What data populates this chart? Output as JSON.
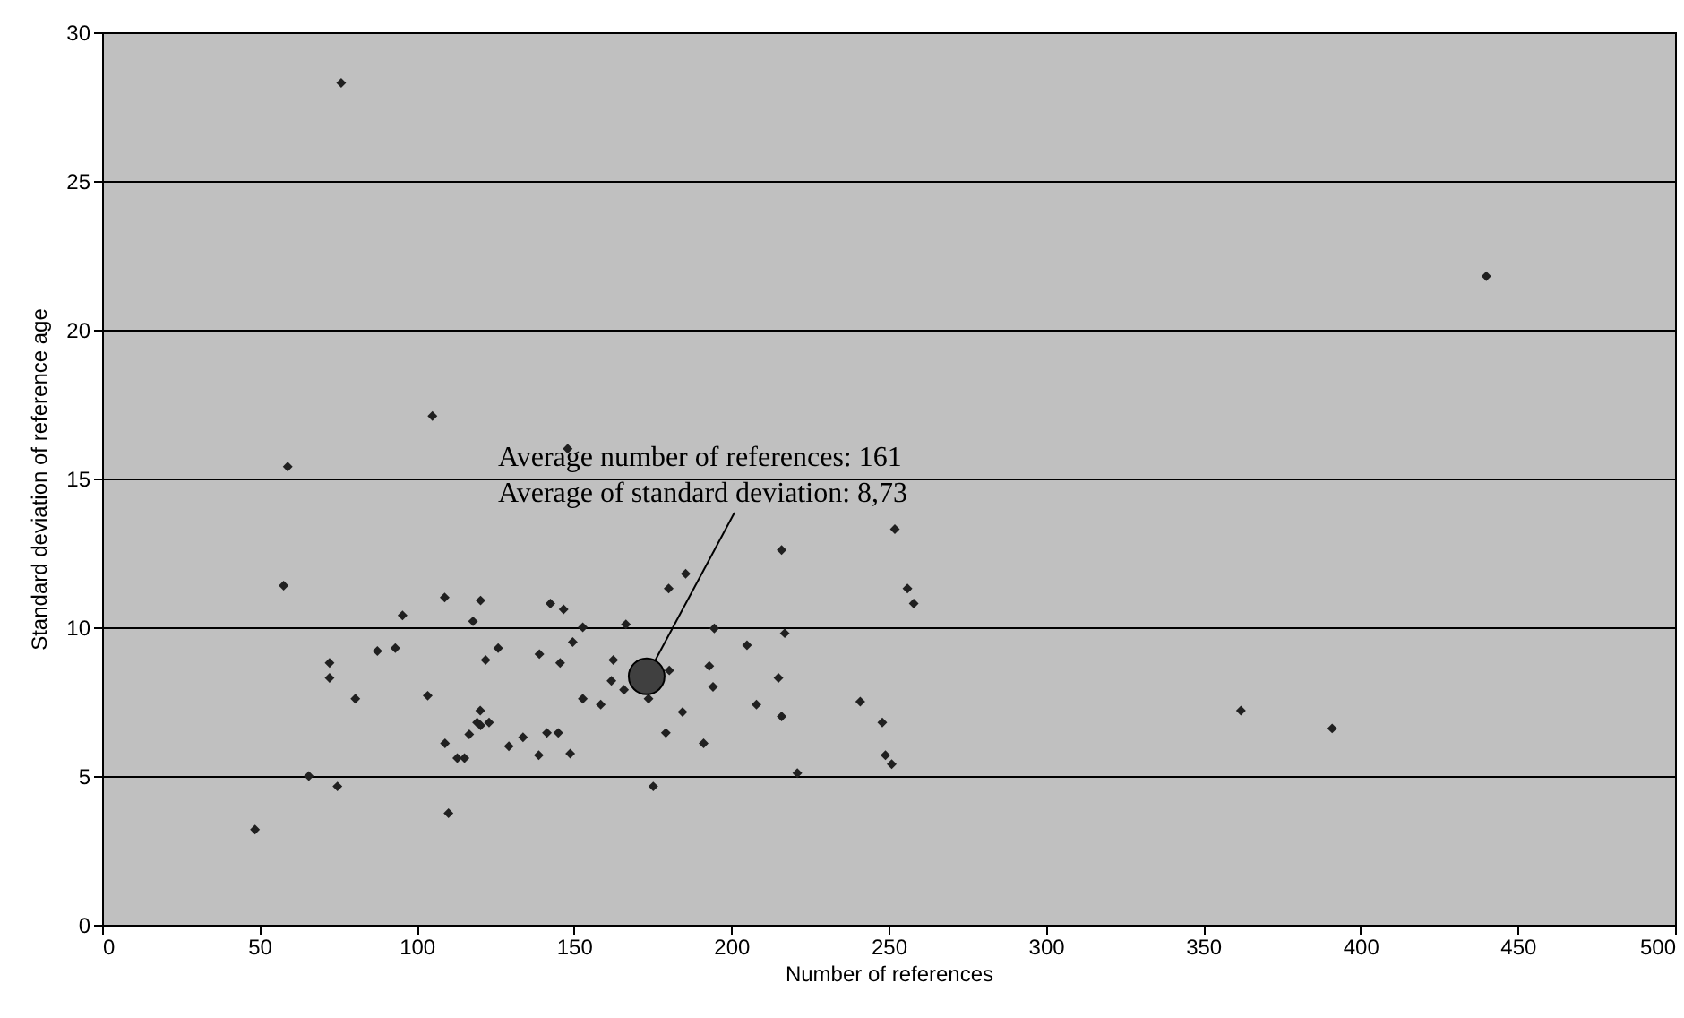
{
  "chart_data": {
    "type": "scatter",
    "xlabel": "Number of references",
    "ylabel": "Standard deviation of reference age",
    "xlim": [
      0,
      500
    ],
    "xticks": [
      0,
      50,
      100,
      150,
      200,
      250,
      300,
      350,
      400,
      450,
      500
    ],
    "ylim": [
      0,
      30
    ],
    "yticks": [
      0,
      5,
      10,
      15,
      20,
      25,
      30
    ],
    "grid": "y",
    "series": [
      {
        "marker": "diamond",
        "color": "#202020",
        "x": [
          76,
          440,
          105,
          59,
          148,
          57.7,
          252,
          216,
          256,
          258,
          362,
          391,
          48.6,
          65.7,
          74.8,
          72.3,
          72.3,
          80.5,
          87.5,
          93.2,
          95.5,
          103.5,
          109,
          110.1,
          108.9,
          112.9,
          115.2,
          116.7,
          119.2,
          117.9,
          120.3,
          120.3,
          120.2,
          121.9,
          123,
          125.9,
          129.3,
          133.8,
          139,
          138.8,
          141.4,
          142.5,
          145,
          145.6,
          146.7,
          148.8,
          149.6,
          152.8,
          152.8,
          158.5,
          161.9,
          162.5,
          165.9,
          166.5,
          173.7,
          175.2,
          179.2,
          180.1,
          180.3,
          184.5,
          185.5,
          191.2,
          193,
          194.2,
          194.6,
          205,
          208,
          215,
          216,
          217,
          221,
          241,
          248,
          249,
          251
        ],
        "values": [
          28.3,
          21.8,
          17.1,
          15.4,
          16.0,
          11.4,
          13.3,
          12.6,
          11.3,
          10.8,
          7.2,
          6.6,
          3.2,
          5.0,
          4.65,
          8.8,
          8.3,
          7.6,
          9.2,
          9.3,
          10.4,
          7.7,
          6.1,
          3.75,
          11.0,
          5.6,
          5.6,
          6.4,
          6.8,
          10.2,
          10.9,
          6.7,
          7.2,
          8.9,
          6.8,
          9.3,
          6.0,
          6.3,
          9.1,
          5.7,
          6.45,
          10.8,
          6.45,
          8.8,
          10.6,
          5.75,
          9.5,
          10.0,
          7.6,
          7.4,
          8.2,
          8.9,
          7.9,
          10.1,
          7.6,
          4.65,
          6.45,
          11.3,
          8.55,
          7.15,
          11.8,
          6.1,
          8.7,
          8.0,
          9.96,
          9.4,
          7.4,
          8.3,
          7.0,
          9.8,
          5.1,
          7.5,
          6.8,
          5.7,
          5.4
        ]
      },
      {
        "type": "bubble",
        "color": "#404040",
        "x": [
          173.1
        ],
        "values": [
          8.35
        ],
        "sizes": [
          1
        ]
      }
    ],
    "annotations": [
      "Average number of references: 161",
      {
        "text": "Average of standard deviation: 8,73",
        "x": 173.1,
        "y": 8.35
      }
    ]
  }
}
